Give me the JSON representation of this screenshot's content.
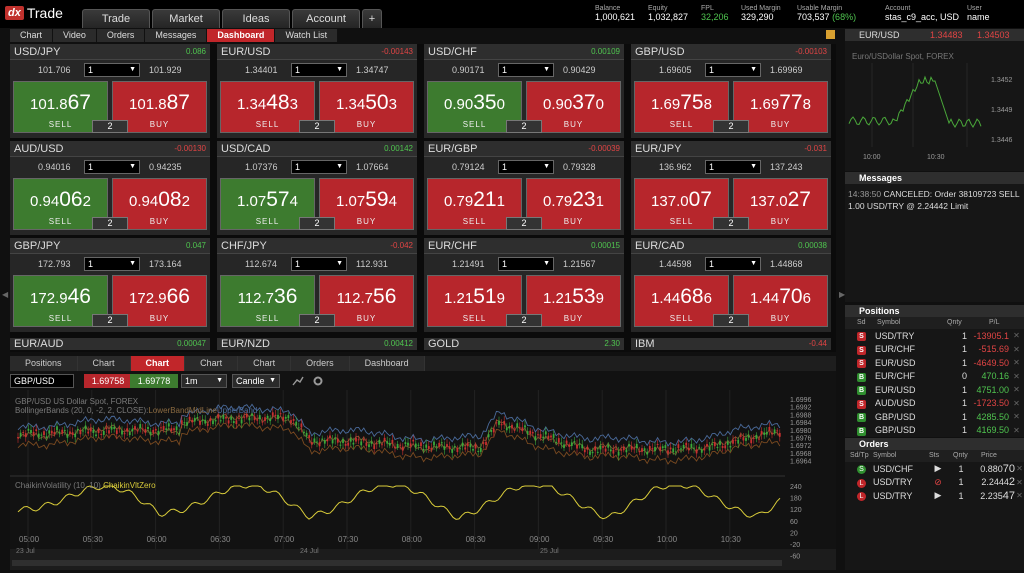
{
  "app": {
    "logo_mark": "dx",
    "logo_text": "Trade"
  },
  "main_tabs": [
    "Trade",
    "Market",
    "Ideas",
    "Account",
    "+"
  ],
  "stats": [
    {
      "label": "Balance",
      "value": "1,000,621"
    },
    {
      "label": "Equity",
      "value": "1,032,827"
    },
    {
      "label": "FPL",
      "value": "32,206"
    },
    {
      "label": "Used Margin",
      "value": "329,290"
    },
    {
      "label": "Usable Margin",
      "value": "703,537",
      "extra": "(68%)"
    },
    {
      "label": "Account",
      "value": "stas_c9_acc, USD"
    },
    {
      "label": "User",
      "value": "name"
    }
  ],
  "sub_tabs": [
    "Chart",
    "Video",
    "Orders",
    "Messages",
    "Dashboard",
    "Watch List"
  ],
  "active_sub_tab": "Dashboard",
  "tiles": [
    {
      "sym": "USD/JPY",
      "chg": "0.086",
      "dir": "pos",
      "lo": "101.706",
      "qty": "1",
      "hi": "101.929",
      "sell_a": "101.8",
      "sell_b": "67",
      "buy_a": "101.8",
      "buy_b": "87",
      "sell_color": "g",
      "buy_color": "r",
      "spread": "2",
      "sell_label": "SELL",
      "buy_label": "BUY"
    },
    {
      "sym": "EUR/USD",
      "chg": "-0.00143",
      "dir": "neg",
      "lo": "1.34401",
      "qty": "1",
      "hi": "1.34747",
      "sell_a": "1.34",
      "sell_b": "48",
      "sell_c": "3",
      "buy_a": "1.34",
      "buy_b": "50",
      "buy_c": "3",
      "sell_color": "r",
      "buy_color": "r",
      "spread": "2",
      "sell_label": "SELL",
      "buy_label": "BUY"
    },
    {
      "sym": "USD/CHF",
      "chg": "0.00109",
      "dir": "pos",
      "lo": "0.90171",
      "qty": "1",
      "hi": "0.90429",
      "sell_a": "0.90",
      "sell_b": "35",
      "sell_c": "0",
      "buy_a": "0.90",
      "buy_b": "37",
      "buy_c": "0",
      "sell_color": "g",
      "buy_color": "r",
      "spread": "2",
      "sell_label": "SELL",
      "buy_label": "BUY"
    },
    {
      "sym": "GBP/USD",
      "chg": "-0.00103",
      "dir": "neg",
      "lo": "1.69605",
      "qty": "1",
      "hi": "1.69969",
      "sell_a": "1.69",
      "sell_b": "75",
      "sell_c": "8",
      "buy_a": "1.69",
      "buy_b": "77",
      "buy_c": "8",
      "sell_color": "r",
      "buy_color": "r",
      "spread": "2",
      "sell_label": "SELL",
      "buy_label": "BUY"
    },
    {
      "sym": "AUD/USD",
      "chg": "-0.00130",
      "dir": "neg",
      "lo": "0.94016",
      "qty": "1",
      "hi": "0.94235",
      "sell_a": "0.94",
      "sell_b": "06",
      "sell_c": "2",
      "buy_a": "0.94",
      "buy_b": "08",
      "buy_c": "2",
      "sell_color": "g",
      "buy_color": "r",
      "spread": "2",
      "sell_label": "SELL",
      "buy_label": "BUY"
    },
    {
      "sym": "USD/CAD",
      "chg": "0.00142",
      "dir": "pos",
      "lo": "1.07376",
      "qty": "1",
      "hi": "1.07664",
      "sell_a": "1.07",
      "sell_b": "57",
      "sell_c": "4",
      "buy_a": "1.07",
      "buy_b": "59",
      "buy_c": "4",
      "sell_color": "g",
      "buy_color": "r",
      "spread": "2",
      "sell_label": "SELL",
      "buy_label": "BUY"
    },
    {
      "sym": "EUR/GBP",
      "chg": "-0.00039",
      "dir": "neg",
      "lo": "0.79124",
      "qty": "1",
      "hi": "0.79328",
      "sell_a": "0.79",
      "sell_b": "21",
      "sell_c": "1",
      "buy_a": "0.79",
      "buy_b": "23",
      "buy_c": "1",
      "sell_color": "r",
      "buy_color": "r",
      "spread": "2",
      "sell_label": "SELL",
      "buy_label": "BUY"
    },
    {
      "sym": "EUR/JPY",
      "chg": "-0.031",
      "dir": "neg",
      "lo": "136.962",
      "qty": "1",
      "hi": "137.243",
      "sell_a": "137.0",
      "sell_b": "07",
      "buy_a": "137.0",
      "buy_b": "27",
      "sell_color": "r",
      "buy_color": "r",
      "spread": "2",
      "sell_label": "SELL",
      "buy_label": "BUY"
    },
    {
      "sym": "GBP/JPY",
      "chg": "0.047",
      "dir": "pos",
      "lo": "172.793",
      "qty": "1",
      "hi": "173.164",
      "sell_a": "172.9",
      "sell_b": "46",
      "buy_a": "172.9",
      "buy_b": "66",
      "sell_color": "g",
      "buy_color": "r",
      "spread": "2",
      "sell_label": "SELL",
      "buy_label": "BUY"
    },
    {
      "sym": "CHF/JPY",
      "chg": "-0.042",
      "dir": "neg",
      "lo": "112.674",
      "qty": "1",
      "hi": "112.931",
      "sell_a": "112.7",
      "sell_b": "36",
      "buy_a": "112.7",
      "buy_b": "56",
      "sell_color": "g",
      "buy_color": "r",
      "spread": "2",
      "sell_label": "SELL",
      "buy_label": "BUY"
    },
    {
      "sym": "EUR/CHF",
      "chg": "0.00015",
      "dir": "pos",
      "lo": "1.21491",
      "qty": "1",
      "hi": "1.21567",
      "sell_a": "1.21",
      "sell_b": "51",
      "sell_c": "9",
      "buy_a": "1.21",
      "buy_b": "53",
      "buy_c": "9",
      "sell_color": "r",
      "buy_color": "r",
      "spread": "2",
      "sell_label": "SELL",
      "buy_label": "BUY"
    },
    {
      "sym": "EUR/CAD",
      "chg": "0.00038",
      "dir": "pos",
      "lo": "1.44598",
      "qty": "1",
      "hi": "1.44868",
      "sell_a": "1.44",
      "sell_b": "68",
      "sell_c": "6",
      "buy_a": "1.44",
      "buy_b": "70",
      "buy_c": "6",
      "sell_color": "r",
      "buy_color": "r",
      "spread": "2",
      "sell_label": "SELL",
      "buy_label": "BUY"
    }
  ],
  "stub_tiles": [
    {
      "sym": "EUR/AUD",
      "chg": "0.00047",
      "dir": "pos"
    },
    {
      "sym": "EUR/NZD",
      "chg": "0.00412",
      "dir": "pos"
    },
    {
      "sym": "GOLD",
      "chg": "2.30",
      "dir": "pos"
    },
    {
      "sym": "IBM",
      "chg": "-0.44",
      "dir": "neg"
    }
  ],
  "chart_tabs": [
    "Positions",
    "Chart",
    "Chart",
    "Chart",
    "Chart",
    "Orders",
    "Dashboard"
  ],
  "chart_active_index": 2,
  "chart_toolbar": {
    "symbol": "GBP/USD",
    "bid": "1.69758",
    "ask": "1.69778",
    "period": "1m",
    "type": "Candle"
  },
  "chart_labels": {
    "title": "GBP/USD US Dollar Spot, FOREX",
    "bb": "BollingerBands (20, 0, -2, 2, CLOSE):",
    "bb_lower": "LowerBand",
    "bb_middle": "MidLine",
    "bb_upper": "UpperBand",
    "vol": "ChaikinVolatility (10, 10)",
    "vol_series": "ChaikinVltZero"
  },
  "price_ticks": [
    "1.6996",
    "1.6992",
    "1.6988",
    "1.6984",
    "1.6980",
    "1.6976",
    "1.6972",
    "1.6968",
    "1.6964"
  ],
  "vol_ticks": [
    "240",
    "180",
    "120",
    "60",
    "20",
    "-20",
    "-60"
  ],
  "time_ticks": [
    "05:00",
    "05:30",
    "06:00",
    "06:30",
    "07:00",
    "07:30",
    "08:00",
    "08:30",
    "09:00",
    "09:30",
    "10:00",
    "10:30"
  ],
  "scroll_dates": [
    "23 Jul",
    "24 Jul",
    "25 Jul"
  ],
  "mini_chart": {
    "symbol": "EUR/USD",
    "bid": "1.34483",
    "ask": "1.34503",
    "subtitle": "Euro/USDollar Spot, FOREX",
    "ticks": [
      "1.3452",
      "1.3449",
      "1.3446"
    ],
    "times": [
      "10:00",
      "10:30"
    ]
  },
  "messages": {
    "title": "Messages",
    "time": "14:38:50",
    "text": "CANCELED: Order 38109723 SELL 1.00 USD/TRY @ 2.24442 Limit"
  },
  "positions": {
    "title": "Positions",
    "cols": [
      "Sd",
      "Symbol",
      "Qnty",
      "P/L"
    ],
    "rows": [
      {
        "sd": "S",
        "sym": "USD/TRY",
        "qty": "1",
        "pl": "-13905.1",
        "dir": "neg"
      },
      {
        "sd": "S",
        "sym": "EUR/CHF",
        "qty": "1",
        "pl": "-515.69",
        "dir": "neg"
      },
      {
        "sd": "S",
        "sym": "EUR/USD",
        "qty": "1",
        "pl": "-4649.50",
        "dir": "neg"
      },
      {
        "sd": "B",
        "sym": "EUR/CHF",
        "qty": "0",
        "pl": "470.16",
        "dir": "pos"
      },
      {
        "sd": "B",
        "sym": "EUR/USD",
        "qty": "1",
        "pl": "4751.00",
        "dir": "pos"
      },
      {
        "sd": "S",
        "sym": "AUD/USD",
        "qty": "1",
        "pl": "-1723.50",
        "dir": "neg"
      },
      {
        "sd": "B",
        "sym": "GBP/USD",
        "qty": "1",
        "pl": "4285.50",
        "dir": "pos"
      },
      {
        "sd": "B",
        "sym": "GBP/USD",
        "qty": "1",
        "pl": "4169.50",
        "dir": "pos"
      }
    ]
  },
  "orders": {
    "title": "Orders",
    "cols": [
      "Sd/Tp",
      "Symbol",
      "Sts",
      "Qnty",
      "Price"
    ],
    "rows": [
      {
        "tp": "S",
        "sym": "USD/CHF",
        "sts": "▶",
        "qty": "1",
        "p_a": "0.880",
        "p_b": "70"
      },
      {
        "tp": "L",
        "sym": "USD/TRY",
        "sts": "⊘",
        "qty": "1",
        "p_a": "2.2444",
        "p_b": "2"
      },
      {
        "tp": "L",
        "sym": "USD/TRY",
        "sts": "▶",
        "qty": "1",
        "p_a": "2.235",
        "p_b": "47"
      }
    ]
  }
}
